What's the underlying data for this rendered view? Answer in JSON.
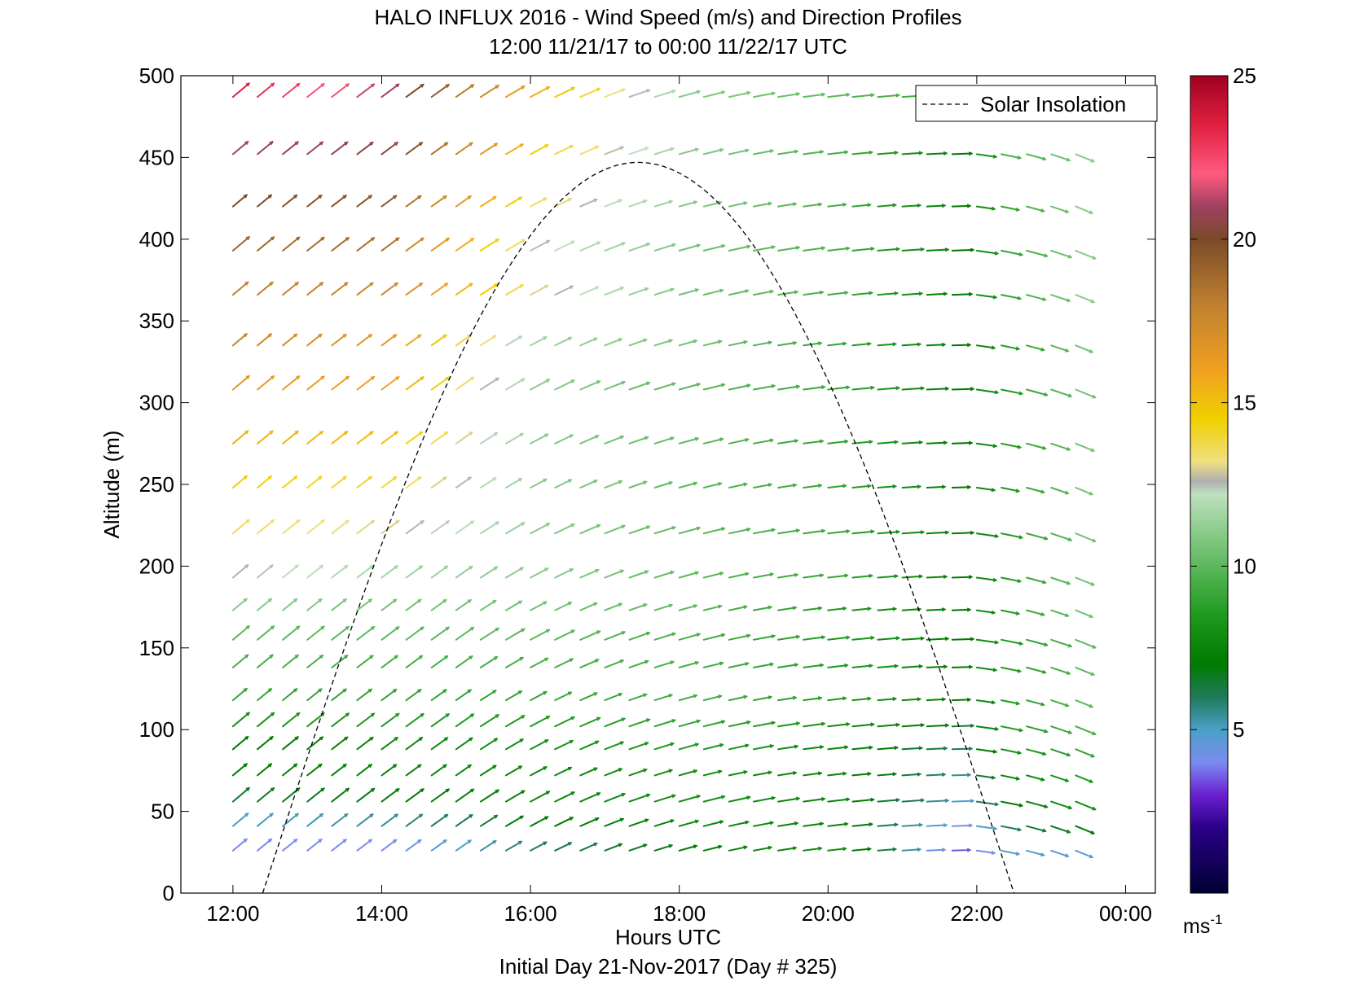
{
  "chart_data": {
    "type": "scatter",
    "subtype": "wind-barb-profile",
    "title": "HALO INFLUX 2016 - Wind Speed (m/s) and Direction Profiles",
    "subtitle": "12:00 11/21/17 to 00:00 11/22/17  UTC",
    "xlabel": "Hours UTC",
    "footer": "Initial Day 21-Nov-2017 (Day # 325)",
    "ylabel": "Altitude (m)",
    "xlim": [
      11.3,
      24.4
    ],
    "ylim": [
      0,
      500
    ],
    "xticks": [
      12,
      14,
      16,
      18,
      20,
      22,
      24
    ],
    "xtick_labels": [
      "12:00",
      "14:00",
      "16:00",
      "18:00",
      "20:00",
      "22:00",
      "00:00"
    ],
    "yticks": [
      0,
      50,
      100,
      150,
      200,
      250,
      300,
      350,
      400,
      450,
      500
    ],
    "ytick_labels": [
      "0",
      "50",
      "100",
      "150",
      "200",
      "250",
      "300",
      "350",
      "400",
      "450",
      "500"
    ],
    "grid": false,
    "legend": {
      "position": "top-right",
      "entries": [
        {
          "label": "Solar Insolation",
          "style": "dashed",
          "color": "#000000"
        }
      ]
    },
    "colorbar": {
      "range": [
        0,
        25
      ],
      "ticks": [
        5,
        10,
        15,
        20,
        25
      ],
      "tick_labels": [
        "5",
        "10",
        "15",
        "20",
        "25"
      ],
      "unit_base": "ms",
      "unit_exp": "-1",
      "stops": [
        {
          "v": 0,
          "c": "#000033"
        },
        {
          "v": 2,
          "c": "#2a0088"
        },
        {
          "v": 3,
          "c": "#6a1fd0"
        },
        {
          "v": 4,
          "c": "#7a8cf0"
        },
        {
          "v": 5,
          "c": "#4aa0c8"
        },
        {
          "v": 6,
          "c": "#1f7a5a"
        },
        {
          "v": 7,
          "c": "#007a00"
        },
        {
          "v": 8.5,
          "c": "#1e9a1e"
        },
        {
          "v": 10,
          "c": "#5cb85c"
        },
        {
          "v": 12.2,
          "c": "#bfe0bf"
        },
        {
          "v": 12.6,
          "c": "#b0b0b0"
        },
        {
          "v": 13.2,
          "c": "#f0e080"
        },
        {
          "v": 14.5,
          "c": "#f0d000"
        },
        {
          "v": 16,
          "c": "#f0a020"
        },
        {
          "v": 18,
          "c": "#c08030"
        },
        {
          "v": 20,
          "c": "#7a4a28"
        },
        {
          "v": 21,
          "c": "#a04060"
        },
        {
          "v": 22,
          "c": "#ff5a80"
        },
        {
          "v": 23.5,
          "c": "#e02040"
        },
        {
          "v": 25,
          "c": "#a00020"
        }
      ]
    },
    "solar_insolation": {
      "start_hour": 12.4,
      "peak_hour": 17.45,
      "end_hour": 22.5,
      "peak_value_m_scale": 447
    },
    "wind_field": {
      "times": [
        12.0,
        12.33,
        12.67,
        13.0,
        13.33,
        13.67,
        14.0,
        14.33,
        14.67,
        15.0,
        15.33,
        15.67,
        16.0,
        16.33,
        16.67,
        17.0,
        17.33,
        17.67,
        18.0,
        18.33,
        18.67,
        19.0,
        19.33,
        19.67,
        20.0,
        20.33,
        20.67,
        21.0,
        21.33,
        21.67,
        22.0,
        22.33,
        22.67,
        23.0,
        23.33
      ],
      "altitudes": [
        26,
        41,
        56,
        72,
        88,
        102,
        118,
        138,
        155,
        173,
        193,
        220,
        248,
        275,
        308,
        335,
        366,
        393,
        420,
        452,
        487
      ],
      "speed_anchors": [
        {
          "t": 12.0,
          "speeds": [
            4.0,
            5.0,
            6.5,
            7.0,
            7.0,
            8.0,
            9.0,
            9.5,
            10.0,
            11.0,
            12.6,
            13.5,
            14.5,
            15.5,
            16.5,
            17.5,
            18.0,
            19.0,
            20.0,
            21.0,
            23.5
          ]
        },
        {
          "t": 14.0,
          "speeds": [
            4.0,
            5.5,
            7.0,
            7.5,
            7.5,
            8.5,
            9.0,
            9.5,
            10.0,
            10.5,
            11.5,
            13.0,
            14.0,
            15.0,
            16.0,
            16.5,
            17.5,
            18.5,
            19.5,
            20.5,
            21.0
          ]
        },
        {
          "t": 16.0,
          "speeds": [
            6.0,
            7.0,
            7.5,
            7.5,
            8.0,
            8.5,
            9.0,
            9.5,
            10.0,
            10.5,
            11.0,
            11.0,
            11.0,
            11.0,
            11.0,
            11.5,
            13.0,
            12.5,
            13.5,
            14.5,
            15.5
          ]
        },
        {
          "t": 18.0,
          "speeds": [
            7.0,
            7.5,
            8.0,
            8.0,
            8.5,
            9.0,
            9.5,
            9.5,
            9.5,
            10.0,
            10.0,
            10.0,
            10.0,
            10.0,
            10.0,
            10.5,
            10.5,
            10.5,
            11.0,
            11.0,
            11.0
          ]
        },
        {
          "t": 20.0,
          "speeds": [
            8.0,
            7.5,
            7.5,
            7.5,
            7.5,
            8.0,
            8.5,
            8.5,
            8.5,
            8.5,
            9.0,
            9.0,
            9.0,
            9.0,
            9.0,
            9.0,
            9.5,
            9.5,
            9.5,
            9.5,
            10.0
          ]
        },
        {
          "t": 21.67,
          "speeds": [
            3.5,
            4.0,
            5.0,
            5.5,
            6.0,
            6.5,
            7.0,
            7.0,
            7.0,
            7.0,
            7.0,
            7.0,
            7.0,
            7.0,
            7.0,
            7.0,
            7.0,
            7.0,
            7.0,
            7.0,
            9.0
          ]
        },
        {
          "t": 22.33,
          "speeds": [
            5.0,
            6.0,
            7.0,
            7.5,
            8.0,
            8.5,
            8.5,
            8.5,
            8.5,
            8.5,
            8.5,
            8.5,
            8.5,
            8.5,
            8.5,
            8.5,
            9.0,
            9.0,
            9.0,
            9.5,
            10.0
          ]
        },
        {
          "t": 23.33,
          "speeds": [
            4.5,
            7.0,
            8.0,
            8.5,
            9.0,
            9.5,
            10.0,
            10.0,
            10.0,
            10.5,
            10.5,
            10.5,
            10.5,
            10.5,
            10.5,
            10.5,
            11.0,
            11.0,
            11.0,
            11.0,
            11.0
          ]
        }
      ],
      "direction_anchors_deg": [
        {
          "t": 12.0,
          "angle": 40
        },
        {
          "t": 15.0,
          "angle": 35
        },
        {
          "t": 16.0,
          "angle": 28
        },
        {
          "t": 17.5,
          "angle": 18
        },
        {
          "t": 19.5,
          "angle": 8
        },
        {
          "t": 21.67,
          "angle": 2
        },
        {
          "t": 22.0,
          "angle": -8
        },
        {
          "t": 23.33,
          "angle": -22
        }
      ],
      "direction_note": "angle = arrow tilt in degrees above horizontal (rightward)"
    }
  }
}
